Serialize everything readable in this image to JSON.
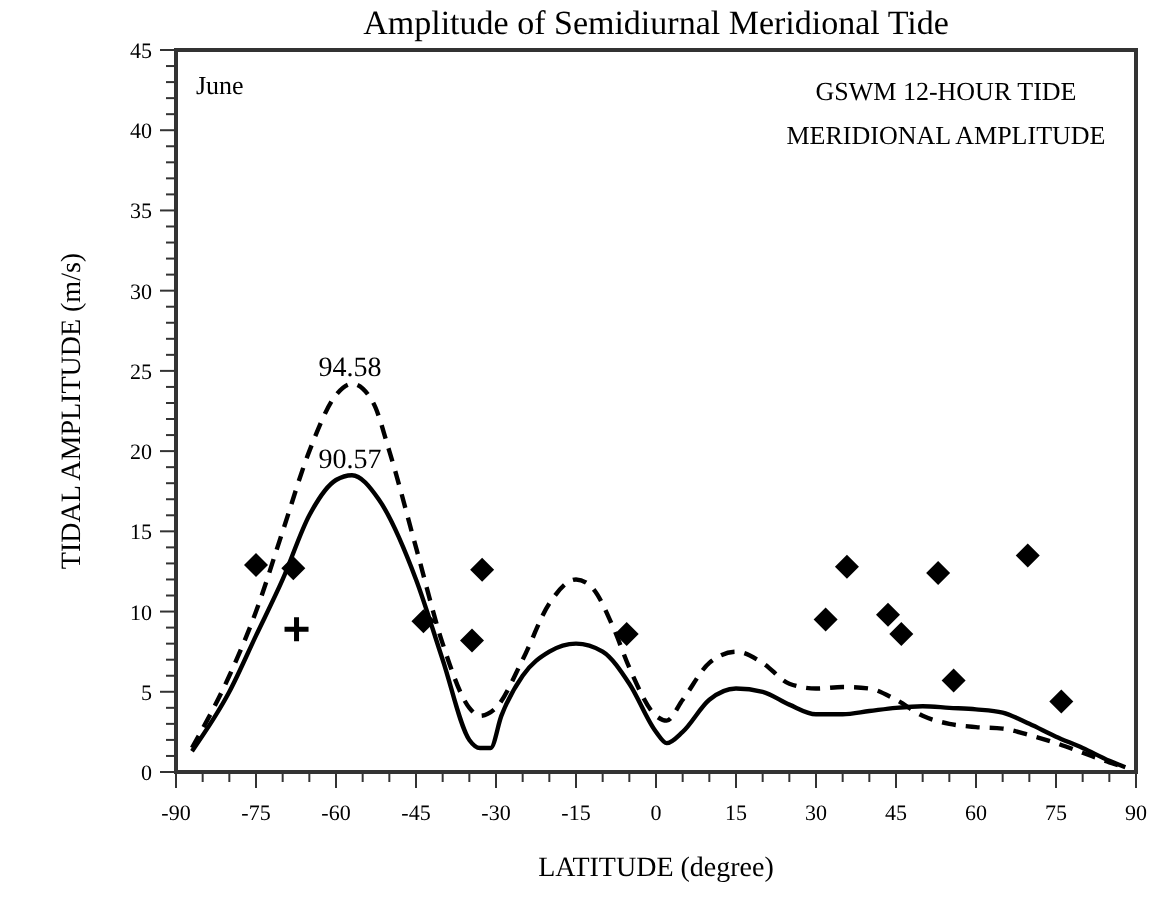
{
  "chart_data": {
    "type": "line",
    "title": "Amplitude of Semidiurnal Meridional Tide",
    "xlabel": "LATITUDE  (degree)",
    "ylabel": "TIDAL AMPLITUDE  (m/s)",
    "annotations": [
      "June",
      "GSWM 12-HOUR TIDE",
      "MERIDIONAL  AMPLITUDE",
      "94.58",
      "90.57"
    ],
    "xlim": [
      -90,
      90
    ],
    "xticks": [
      -90,
      -75,
      -60,
      -45,
      -30,
      -15,
      0,
      15,
      30,
      45,
      60,
      75,
      90
    ],
    "ylim": [
      0,
      45
    ],
    "yticks": [
      0,
      5,
      10,
      15,
      20,
      25,
      30,
      35,
      40,
      45
    ],
    "grid": false,
    "series": [
      {
        "color": "#000000",
        "line_style": "solid",
        "marker": "none",
        "x": [
          -87,
          -80,
          -75,
          -70,
          -65,
          -60,
          -57,
          -52,
          -45,
          -40,
          -35,
          -33,
          -31,
          -29,
          -25,
          -20,
          -15,
          -10,
          -5,
          0,
          2,
          5,
          10,
          15,
          20,
          25,
          30,
          35,
          40,
          45,
          50,
          55,
          60,
          65,
          70,
          75,
          80,
          85,
          88
        ],
        "values": [
          1.3,
          5,
          8.5,
          12,
          16,
          18.2,
          18.5,
          17,
          12,
          7,
          2,
          1.5,
          1.5,
          3.5,
          6,
          7.5,
          8,
          7.5,
          5.5,
          2.5,
          1.8,
          2.5,
          4.5,
          5.2,
          5,
          4.2,
          3.6,
          3.6,
          3.8,
          4,
          4.1,
          4,
          3.9,
          3.7,
          3,
          2.2,
          1.5,
          0.7,
          0.3
        ]
      },
      {
        "color": "#000000",
        "line_style": "dashed",
        "marker": "none",
        "x": [
          -87,
          -80,
          -75,
          -70,
          -65,
          -60,
          -57,
          -53,
          -50,
          -45,
          -40,
          -35,
          -33,
          -30,
          -25,
          -20,
          -15,
          -12,
          -8,
          -5,
          0,
          2,
          5,
          10,
          15,
          20,
          25,
          30,
          35,
          40,
          45,
          50,
          55,
          60,
          65,
          70,
          75,
          80,
          85,
          88
        ],
        "values": [
          1.5,
          6,
          10,
          15,
          20,
          23.5,
          24.2,
          23,
          20,
          14,
          8,
          4,
          3.5,
          4,
          7,
          10.5,
          12,
          11.5,
          9,
          6.5,
          3.5,
          3.2,
          4.5,
          6.8,
          7.5,
          6.8,
          5.5,
          5.2,
          5.3,
          5.2,
          4.5,
          3.5,
          3,
          2.8,
          2.7,
          2.3,
          1.8,
          1.2,
          0.6,
          0.3
        ]
      },
      {
        "type": "scatter",
        "color": "#000000",
        "marker": "diamond",
        "x": [
          -75,
          -68,
          -43.6,
          -34.5,
          -32.6,
          -5.5,
          31.8,
          35.8,
          43.5,
          46,
          52.9,
          55.8,
          69.7,
          76
        ],
        "values": [
          12.9,
          12.7,
          9.4,
          8.2,
          12.6,
          8.6,
          9.5,
          12.8,
          9.8,
          8.6,
          12.4,
          5.7,
          13.5,
          4.4
        ]
      },
      {
        "type": "scatter",
        "color": "#000000",
        "marker": "cross",
        "x": [
          -67.4
        ],
        "values": [
          8.9
        ]
      }
    ]
  }
}
